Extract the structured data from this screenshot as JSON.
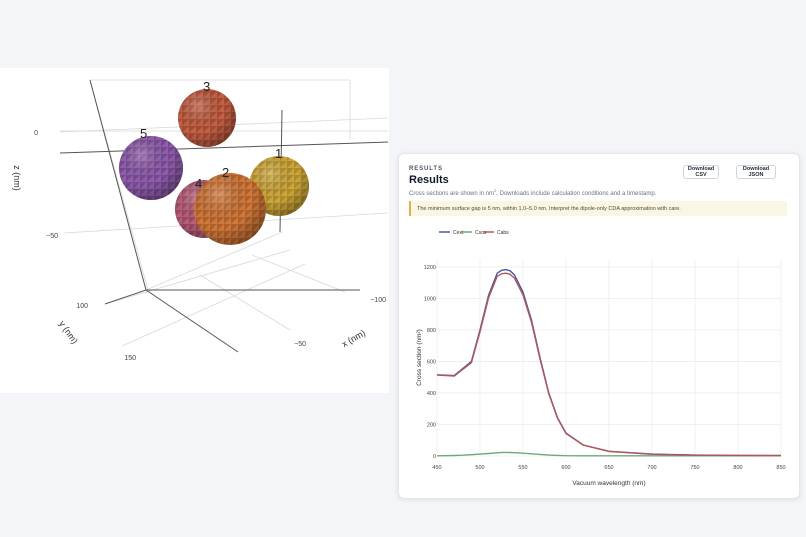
{
  "scene": {
    "axis_labels": {
      "z": "z (nm)",
      "y": "y (nm)",
      "x": "x (nm)"
    },
    "ticks": [
      {
        "id": "z0",
        "text": "0"
      },
      {
        "id": "z50",
        "text": "−50"
      },
      {
        "id": "y100",
        "text": "100"
      },
      {
        "id": "y150",
        "text": "150"
      },
      {
        "id": "x100",
        "text": "−100"
      },
      {
        "id": "x50",
        "text": "−50"
      }
    ],
    "spheres": [
      {
        "label": "3",
        "color": "#c0583b"
      },
      {
        "label": "5",
        "color": "#8a55a8"
      },
      {
        "label": "1",
        "color": "#cda431"
      },
      {
        "label": "4",
        "color": "#b45572"
      },
      {
        "label": "2",
        "color": "#cf7231"
      }
    ]
  },
  "results": {
    "eyebrow": "RESULTS",
    "title": "Results",
    "subtitle_pre": "Cross sections are shown in nm",
    "subtitle_sup": "2",
    "subtitle_post": ". Downloads include calculation conditions and a timestamp.",
    "download_csv": "Download CSV",
    "download_json": "Download JSON",
    "notice": "The minimum surface gap is 5 nm, within 1.0–5.0 nm. Interpret the dipole-only CDA approximation with care."
  },
  "chart_data": {
    "type": "line",
    "xlabel": "Vacuum wavelength (nm)",
    "ylabel": "Cross section (nm²)",
    "xlim": [
      450,
      850
    ],
    "ylim": [
      0,
      1250
    ],
    "xticks": [
      450,
      500,
      550,
      600,
      650,
      700,
      750,
      800,
      850
    ],
    "yticks": [
      0,
      200,
      400,
      600,
      800,
      1000,
      1200
    ],
    "x": [
      450,
      460,
      470,
      480,
      490,
      500,
      510,
      520,
      525,
      530,
      535,
      540,
      550,
      560,
      570,
      580,
      590,
      600,
      620,
      650,
      700,
      750,
      800,
      850
    ],
    "legend": "top-left",
    "series": [
      {
        "name": "Cext",
        "color": "#4a58a0",
        "values": [
          515,
          513,
          510,
          555,
          600,
          800,
          1020,
          1160,
          1178,
          1183,
          1175,
          1150,
          1040,
          860,
          620,
          400,
          245,
          145,
          70,
          30,
          12,
          6,
          4,
          3
        ]
      },
      {
        "name": "Csca",
        "color": "#6fa878",
        "values": [
          1,
          2,
          3,
          5,
          8,
          12,
          16,
          20,
          22,
          23,
          22,
          21,
          18,
          14,
          10,
          6,
          4,
          2,
          1,
          1,
          1,
          1,
          1,
          1
        ]
      },
      {
        "name": "Cabs",
        "color": "#b05858",
        "values": [
          514,
          511,
          507,
          550,
          592,
          788,
          1004,
          1140,
          1156,
          1160,
          1153,
          1129,
          1022,
          846,
          610,
          394,
          241,
          143,
          69,
          29,
          11,
          5,
          3,
          2
        ]
      }
    ]
  }
}
